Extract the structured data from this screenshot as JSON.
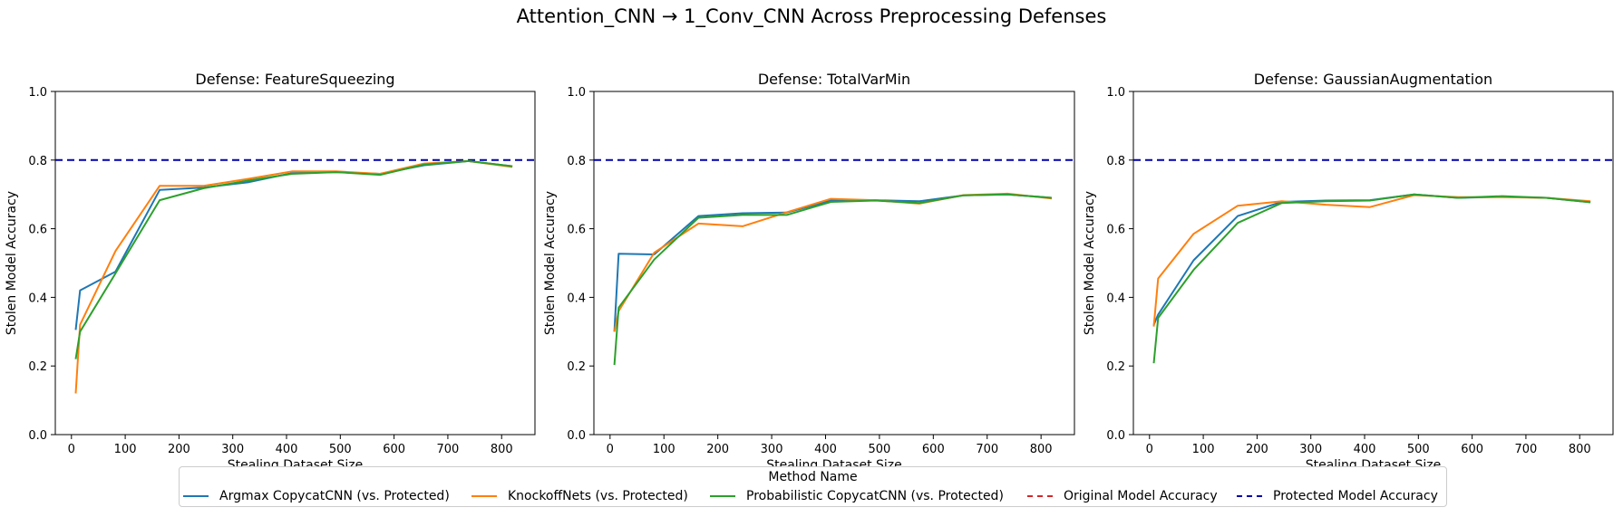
{
  "title": "Attention_CNN → 1_Conv_CNN Across Preprocessing Defenses",
  "legend": {
    "title": "Method Name",
    "entries": [
      {
        "label": "Argmax CopycatCNN (vs. Protected)",
        "color": "#1f77b4",
        "style": "solid"
      },
      {
        "label": "KnockoffNets (vs. Protected)",
        "color": "#ff7f0e",
        "style": "solid"
      },
      {
        "label": "Probabilistic CopycatCNN (vs. Protected)",
        "color": "#2ca02c",
        "style": "solid"
      },
      {
        "label": "Original Model Accuracy",
        "color": "#d62728",
        "style": "dashed"
      },
      {
        "label": "Protected Model Accuracy",
        "color": "#0000aa",
        "style": "dashed"
      }
    ]
  },
  "chart_data": [
    {
      "type": "line",
      "title": "Defense: FeatureSqueezing",
      "xlabel": "Stealing Dataset Size",
      "ylabel": "Stolen Model Accuracy",
      "xlim": [
        -30,
        862
      ],
      "ylim": [
        0,
        1.0
      ],
      "xticks": [
        0,
        100,
        200,
        300,
        400,
        500,
        600,
        700,
        800
      ],
      "yticks": [
        0.0,
        0.2,
        0.4,
        0.6,
        0.8,
        1.0
      ],
      "grid": false,
      "hlines": [
        {
          "name": "Protected Model Accuracy",
          "y": 0.8,
          "color": "#0000aa"
        }
      ],
      "series": [
        {
          "name": "Argmax CopycatCNN (vs. Protected)",
          "color": "#1f77b4",
          "x": [
            8,
            16,
            82,
            164,
            246,
            328,
            410,
            492,
            574,
            656,
            738,
            820
          ],
          "y": [
            0.305,
            0.42,
            0.475,
            0.713,
            0.72,
            0.735,
            0.762,
            0.765,
            0.76,
            0.785,
            0.797,
            0.782
          ]
        },
        {
          "name": "KnockoffNets (vs. Protected)",
          "color": "#ff7f0e",
          "x": [
            8,
            16,
            82,
            164,
            246,
            328,
            410,
            492,
            574,
            656,
            738,
            820
          ],
          "y": [
            0.12,
            0.32,
            0.535,
            0.725,
            0.725,
            0.745,
            0.767,
            0.767,
            0.76,
            0.79,
            0.797,
            0.78
          ]
        },
        {
          "name": "Probabilistic CopycatCNN (vs. Protected)",
          "color": "#2ca02c",
          "x": [
            8,
            16,
            82,
            164,
            246,
            328,
            410,
            492,
            574,
            656,
            738,
            820
          ],
          "y": [
            0.22,
            0.3,
            0.47,
            0.683,
            0.718,
            0.74,
            0.76,
            0.765,
            0.757,
            0.787,
            0.797,
            0.782
          ]
        }
      ]
    },
    {
      "type": "line",
      "title": "Defense: TotalVarMin",
      "xlabel": "Stealing Dataset Size",
      "ylabel": "Stolen Model Accuracy",
      "xlim": [
        -30,
        862
      ],
      "ylim": [
        0,
        1.0
      ],
      "xticks": [
        0,
        100,
        200,
        300,
        400,
        500,
        600,
        700,
        800
      ],
      "yticks": [
        0.0,
        0.2,
        0.4,
        0.6,
        0.8,
        1.0
      ],
      "grid": false,
      "hlines": [
        {
          "name": "Protected Model Accuracy",
          "y": 0.8,
          "color": "#0000aa"
        }
      ],
      "series": [
        {
          "name": "Argmax CopycatCNN (vs. Protected)",
          "color": "#1f77b4",
          "x": [
            8,
            16,
            82,
            164,
            246,
            328,
            410,
            492,
            574,
            656,
            738,
            820
          ],
          "y": [
            0.3,
            0.527,
            0.525,
            0.637,
            0.645,
            0.647,
            0.682,
            0.683,
            0.68,
            0.697,
            0.7,
            0.69
          ]
        },
        {
          "name": "KnockoffNets (vs. Protected)",
          "color": "#ff7f0e",
          "x": [
            8,
            16,
            82,
            164,
            246,
            328,
            410,
            492,
            574,
            656,
            738,
            820
          ],
          "y": [
            0.3,
            0.36,
            0.53,
            0.615,
            0.607,
            0.648,
            0.687,
            0.683,
            0.673,
            0.698,
            0.702,
            0.688
          ]
        },
        {
          "name": "Probabilistic CopycatCNN (vs. Protected)",
          "color": "#2ca02c",
          "x": [
            8,
            16,
            82,
            164,
            246,
            328,
            410,
            492,
            574,
            656,
            738,
            820
          ],
          "y": [
            0.203,
            0.37,
            0.51,
            0.632,
            0.64,
            0.64,
            0.678,
            0.682,
            0.675,
            0.697,
            0.7,
            0.69
          ]
        }
      ]
    },
    {
      "type": "line",
      "title": "Defense: GaussianAugmentation",
      "xlabel": "Stealing Dataset Size",
      "ylabel": "Stolen Model Accuracy",
      "xlim": [
        -30,
        862
      ],
      "ylim": [
        0,
        1.0
      ],
      "xticks": [
        0,
        100,
        200,
        300,
        400,
        500,
        600,
        700,
        800
      ],
      "yticks": [
        0.0,
        0.2,
        0.4,
        0.6,
        0.8,
        1.0
      ],
      "grid": false,
      "hlines": [
        {
          "name": "Protected Model Accuracy",
          "y": 0.8,
          "color": "#0000aa"
        }
      ],
      "series": [
        {
          "name": "Argmax CopycatCNN (vs. Protected)",
          "color": "#1f77b4",
          "x": [
            8,
            16,
            82,
            164,
            246,
            328,
            410,
            492,
            574,
            656,
            738,
            820
          ],
          "y": [
            0.32,
            0.35,
            0.508,
            0.637,
            0.678,
            0.682,
            0.683,
            0.7,
            0.69,
            0.693,
            0.69,
            0.677
          ]
        },
        {
          "name": "KnockoffNets (vs. Protected)",
          "color": "#ff7f0e",
          "x": [
            8,
            16,
            82,
            164,
            246,
            328,
            410,
            492,
            574,
            656,
            738,
            820
          ],
          "y": [
            0.315,
            0.455,
            0.585,
            0.667,
            0.68,
            0.67,
            0.663,
            0.698,
            0.692,
            0.692,
            0.69,
            0.68
          ]
        },
        {
          "name": "Probabilistic CopycatCNN (vs. Protected)",
          "color": "#2ca02c",
          "x": [
            8,
            16,
            82,
            164,
            246,
            328,
            410,
            492,
            574,
            656,
            738,
            820
          ],
          "y": [
            0.208,
            0.34,
            0.48,
            0.617,
            0.675,
            0.68,
            0.682,
            0.7,
            0.69,
            0.695,
            0.69,
            0.677
          ]
        }
      ]
    }
  ]
}
